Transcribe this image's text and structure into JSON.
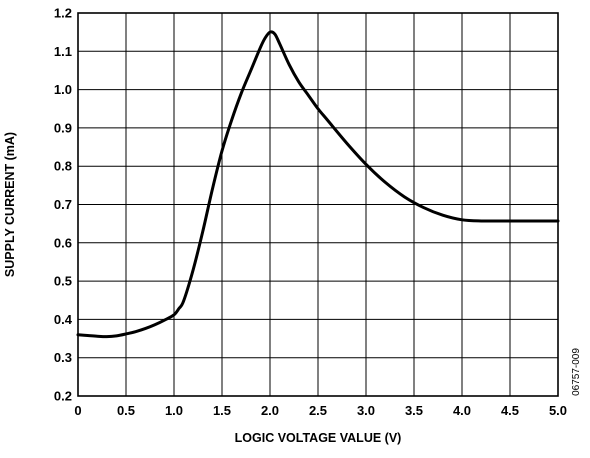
{
  "chart_data": {
    "type": "line",
    "title": "",
    "xlabel": "LOGIC VOLTAGE VALUE (V)",
    "ylabel": "SUPPLY CURRENT (mA)",
    "xlim": [
      0,
      5.0
    ],
    "ylim": [
      0.2,
      1.2
    ],
    "x_ticks": [
      {
        "value": 0,
        "label": "0"
      },
      {
        "value": 0.5,
        "label": "0.5"
      },
      {
        "value": 1.0,
        "label": "1.0"
      },
      {
        "value": 1.5,
        "label": "1.5"
      },
      {
        "value": 2.0,
        "label": "2.0"
      },
      {
        "value": 2.5,
        "label": "2.5"
      },
      {
        "value": 3.0,
        "label": "3.0"
      },
      {
        "value": 3.5,
        "label": "3.5"
      },
      {
        "value": 4.0,
        "label": "4.0"
      },
      {
        "value": 4.5,
        "label": "4.5"
      },
      {
        "value": 5.0,
        "label": "5.0"
      }
    ],
    "y_ticks": [
      {
        "value": 0.2,
        "label": "0.2"
      },
      {
        "value": 0.3,
        "label": "0.3"
      },
      {
        "value": 0.4,
        "label": "0.4"
      },
      {
        "value": 0.5,
        "label": "0.5"
      },
      {
        "value": 0.6,
        "label": "0.6"
      },
      {
        "value": 0.7,
        "label": "0.7"
      },
      {
        "value": 0.8,
        "label": "0.8"
      },
      {
        "value": 0.9,
        "label": "0.9"
      },
      {
        "value": 1.0,
        "label": "1.0"
      },
      {
        "value": 1.1,
        "label": "1.1"
      },
      {
        "value": 1.2,
        "label": "1.2"
      }
    ],
    "grid": true,
    "legend": "none",
    "series": [
      {
        "color": "#000000",
        "x": [
          0.0,
          0.1,
          0.2,
          0.3,
          0.4,
          0.5,
          0.6,
          0.7,
          0.8,
          0.9,
          1.0,
          1.05,
          1.1,
          1.2,
          1.3,
          1.4,
          1.5,
          1.6,
          1.7,
          1.8,
          1.9,
          1.95,
          2.0,
          2.05,
          2.1,
          2.2,
          2.3,
          2.4,
          2.5,
          2.6,
          2.8,
          3.0,
          3.2,
          3.4,
          3.6,
          3.8,
          4.0,
          4.2,
          4.5,
          4.8,
          5.0
        ],
        "y": [
          0.36,
          0.358,
          0.356,
          0.355,
          0.357,
          0.362,
          0.368,
          0.376,
          0.386,
          0.398,
          0.412,
          0.428,
          0.448,
          0.53,
          0.63,
          0.74,
          0.84,
          0.92,
          0.99,
          1.05,
          1.11,
          1.135,
          1.15,
          1.145,
          1.12,
          1.065,
          1.02,
          0.985,
          0.95,
          0.92,
          0.86,
          0.805,
          0.758,
          0.72,
          0.692,
          0.672,
          0.66,
          0.657,
          0.657,
          0.657,
          0.657
        ]
      }
    ],
    "annotations": [
      {
        "text": "06757-009"
      }
    ]
  }
}
